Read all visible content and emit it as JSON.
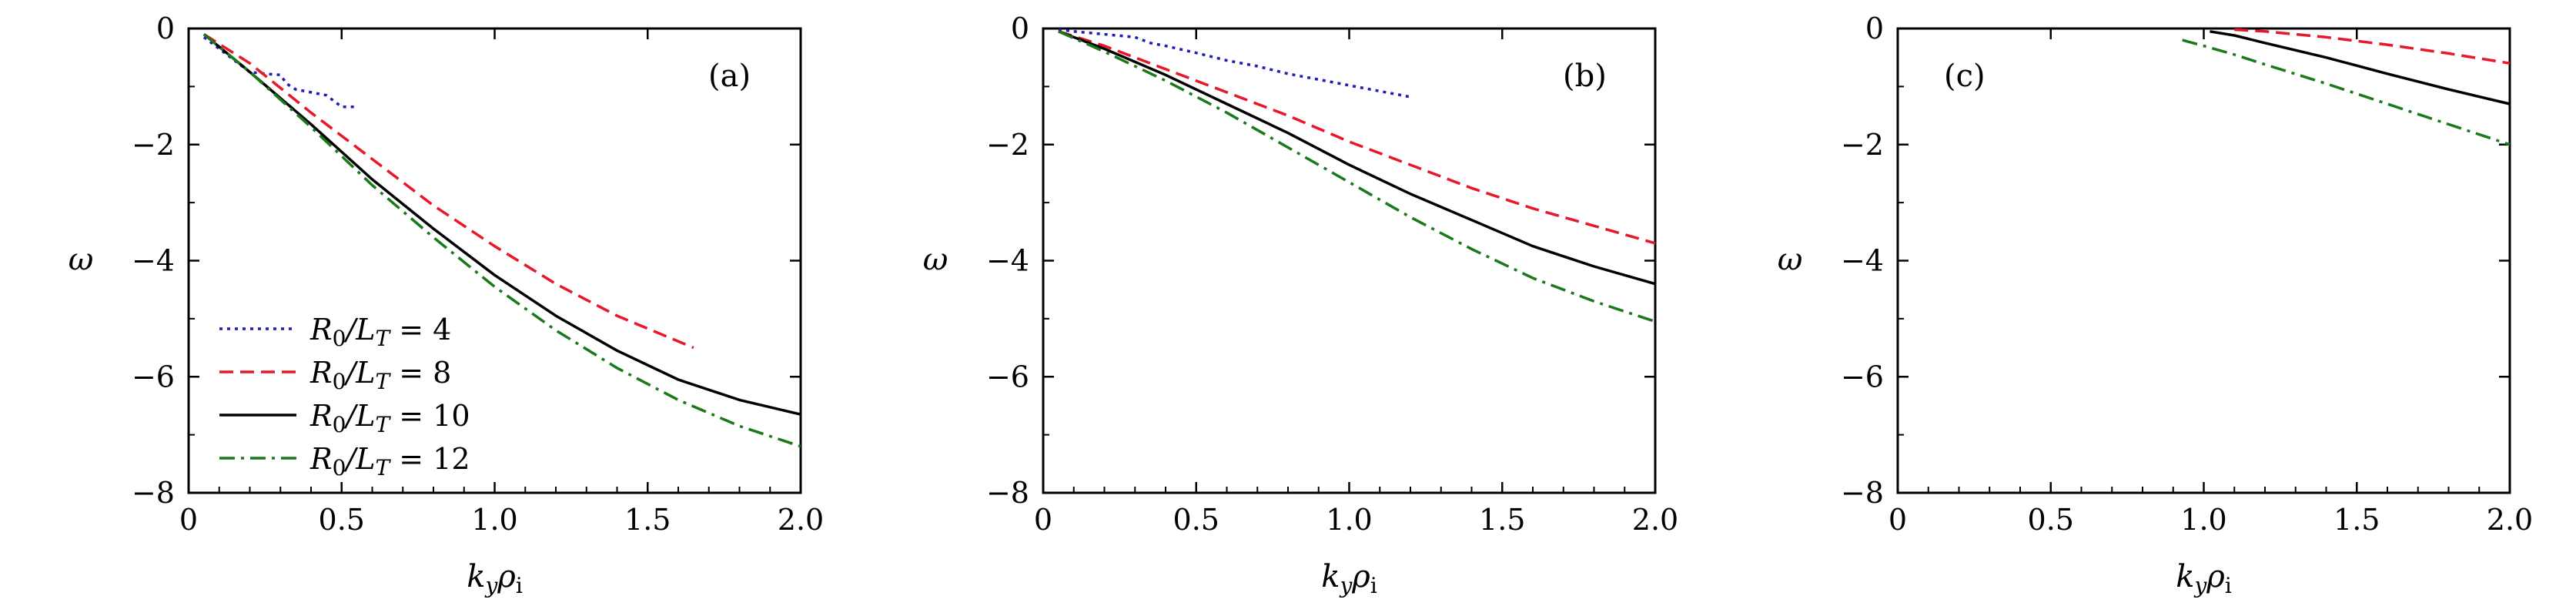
{
  "chart_data": [
    {
      "type": "line",
      "panel_label": "(a)",
      "xlabel": "k_y ρ_i",
      "ylabel": "ω",
      "xlim": [
        0,
        2.0
      ],
      "ylim": [
        -8,
        0
      ],
      "xticks": [
        "0",
        "0.5",
        "1.0",
        "1.5",
        "2.0"
      ],
      "yticks": [
        "0",
        "−2",
        "−4",
        "−6",
        "−8"
      ],
      "legend_position": "lower-left",
      "legend": [
        "R0/LT = 4",
        "R0/LT = 8",
        "R0/LT = 10",
        "R0/LT = 12"
      ],
      "series": [
        {
          "name": "R0/LT = 4",
          "color": "#1f1fb4",
          "dash": "dotted",
          "x": [
            0.05,
            0.1,
            0.15,
            0.2,
            0.25,
            0.3,
            0.32,
            0.35,
            0.4,
            0.45,
            0.5,
            0.52,
            0.55
          ],
          "y": [
            -0.15,
            -0.35,
            -0.55,
            -0.75,
            -0.78,
            -0.8,
            -0.95,
            -1.05,
            -1.1,
            -1.15,
            -1.35,
            -1.35,
            -1.35
          ]
        },
        {
          "name": "R0/LT = 8",
          "color": "#e8172a",
          "dash": "dashed",
          "x": [
            0.05,
            0.2,
            0.4,
            0.6,
            0.8,
            1.0,
            1.2,
            1.4,
            1.65
          ],
          "y": [
            -0.1,
            -0.6,
            -1.45,
            -2.25,
            -3.05,
            -3.75,
            -4.4,
            -4.95,
            -5.5
          ]
        },
        {
          "name": "R0/LT = 10",
          "color": "#000000",
          "dash": "solid",
          "x": [
            0.05,
            0.2,
            0.4,
            0.6,
            0.8,
            1.0,
            1.2,
            1.4,
            1.6,
            1.8,
            2.0
          ],
          "y": [
            -0.1,
            -0.75,
            -1.65,
            -2.6,
            -3.45,
            -4.25,
            -4.95,
            -5.55,
            -6.05,
            -6.4,
            -6.65
          ]
        },
        {
          "name": "R0/LT = 12",
          "color": "#1a7a1a",
          "dash": "dashdot",
          "x": [
            0.05,
            0.2,
            0.4,
            0.6,
            0.8,
            1.0,
            1.2,
            1.4,
            1.6,
            1.8,
            2.0
          ],
          "y": [
            -0.1,
            -0.75,
            -1.7,
            -2.7,
            -3.6,
            -4.45,
            -5.2,
            -5.85,
            -6.4,
            -6.85,
            -7.2
          ]
        }
      ]
    },
    {
      "type": "line",
      "panel_label": "(b)",
      "xlabel": "k_y ρ_i",
      "ylabel": "ω",
      "xlim": [
        0,
        2.0
      ],
      "ylim": [
        -8,
        0
      ],
      "xticks": [
        "0",
        "0.5",
        "1.0",
        "1.5",
        "2.0"
      ],
      "yticks": [
        "0",
        "−2",
        "−4",
        "−6",
        "−8"
      ],
      "series": [
        {
          "name": "R0/LT = 4",
          "color": "#1f1fb4",
          "dash": "dotted",
          "x": [
            0.05,
            0.1,
            0.2,
            0.3,
            0.35,
            0.4,
            0.5,
            0.6,
            0.7,
            0.8,
            0.9,
            1.0,
            1.1,
            1.2
          ],
          "y": [
            -0.02,
            -0.05,
            -0.1,
            -0.15,
            -0.25,
            -0.3,
            -0.42,
            -0.55,
            -0.65,
            -0.78,
            -0.88,
            -0.98,
            -1.08,
            -1.18
          ]
        },
        {
          "name": "R0/LT = 8",
          "color": "#e8172a",
          "dash": "dashed",
          "x": [
            0.05,
            0.2,
            0.4,
            0.6,
            0.8,
            1.0,
            1.2,
            1.4,
            1.6,
            1.8,
            2.0
          ],
          "y": [
            -0.05,
            -0.3,
            -0.7,
            -1.1,
            -1.5,
            -1.95,
            -2.35,
            -2.75,
            -3.1,
            -3.4,
            -3.7
          ]
        },
        {
          "name": "R0/LT = 10",
          "color": "#000000",
          "dash": "solid",
          "x": [
            0.05,
            0.2,
            0.4,
            0.6,
            0.8,
            1.0,
            1.2,
            1.4,
            1.6,
            1.8,
            2.0
          ],
          "y": [
            -0.05,
            -0.35,
            -0.8,
            -1.3,
            -1.8,
            -2.35,
            -2.85,
            -3.3,
            -3.75,
            -4.1,
            -4.4
          ]
        },
        {
          "name": "R0/LT = 12",
          "color": "#1a7a1a",
          "dash": "dashdot",
          "x": [
            0.05,
            0.2,
            0.4,
            0.6,
            0.8,
            1.0,
            1.2,
            1.4,
            1.6,
            1.8,
            2.0
          ],
          "y": [
            -0.05,
            -0.4,
            -0.9,
            -1.45,
            -2.05,
            -2.65,
            -3.25,
            -3.8,
            -4.3,
            -4.7,
            -5.05
          ]
        }
      ]
    },
    {
      "type": "line",
      "panel_label": "(c)",
      "xlabel": "k_y ρ_i",
      "ylabel": "ω",
      "xlim": [
        0,
        2.0
      ],
      "ylim": [
        -8,
        0
      ],
      "xticks": [
        "0",
        "0.5",
        "1.0",
        "1.5",
        "2.0"
      ],
      "yticks": [
        "0",
        "−2",
        "−4",
        "−6",
        "−8"
      ],
      "series": [
        {
          "name": "R0/LT = 8",
          "color": "#e8172a",
          "dash": "dashed",
          "x": [
            1.1,
            1.2,
            1.4,
            1.6,
            1.8,
            2.0
          ],
          "y": [
            -0.02,
            -0.05,
            -0.15,
            -0.28,
            -0.43,
            -0.6
          ]
        },
        {
          "name": "R0/LT = 10",
          "color": "#000000",
          "dash": "solid",
          "x": [
            1.02,
            1.1,
            1.2,
            1.4,
            1.6,
            1.8,
            2.0
          ],
          "y": [
            -0.05,
            -0.12,
            -0.25,
            -0.5,
            -0.78,
            -1.05,
            -1.3
          ]
        },
        {
          "name": "R0/LT = 12",
          "color": "#1a7a1a",
          "dash": "dashdot",
          "x": [
            0.93,
            1.0,
            1.1,
            1.2,
            1.4,
            1.6,
            1.8,
            2.0
          ],
          "y": [
            -0.2,
            -0.3,
            -0.45,
            -0.62,
            -0.95,
            -1.3,
            -1.65,
            -2.0
          ]
        }
      ]
    }
  ]
}
